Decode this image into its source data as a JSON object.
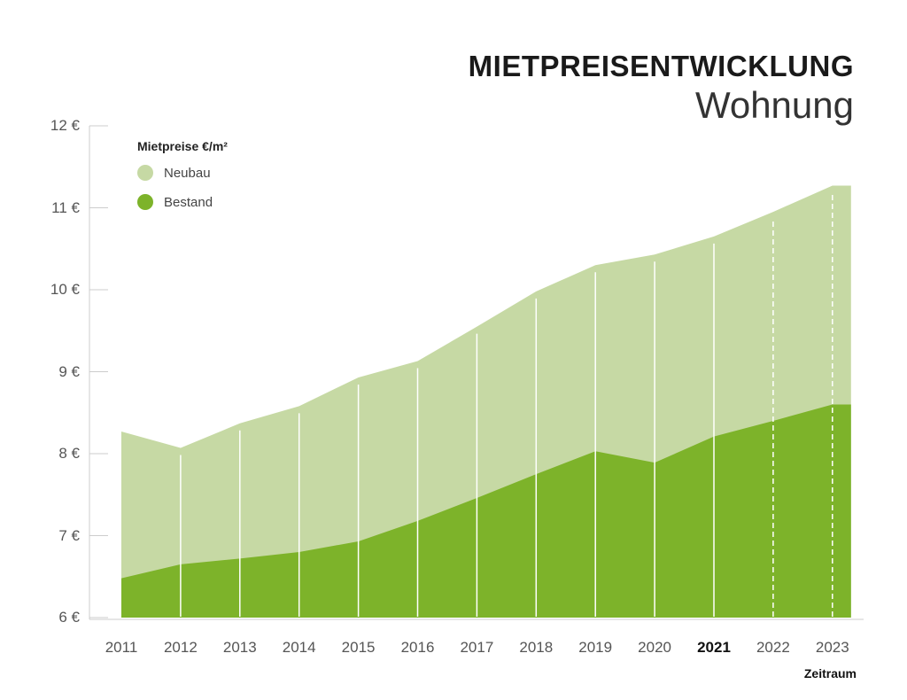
{
  "title": "MIETPREISENTWICKLUNG",
  "subtitle": "Wohnung",
  "legend": {
    "title": "Mietpreise €/m²",
    "items": [
      {
        "label": "Neubau",
        "color": "#c6d9a4"
      },
      {
        "label": "Bestand",
        "color": "#7db32a"
      }
    ]
  },
  "xlabel": "Zeitraum",
  "chart_data": {
    "type": "area",
    "x": [
      "2011",
      "2012",
      "2013",
      "2014",
      "2015",
      "2016",
      "2017",
      "2018",
      "2019",
      "2020",
      "2021",
      "2022",
      "2023"
    ],
    "highlight_x": "2021",
    "projected_from": "2022",
    "series": [
      {
        "name": "Neubau",
        "color": "#c6d9a4",
        "values": [
          8.27,
          8.07,
          8.37,
          8.58,
          8.93,
          9.13,
          9.55,
          9.98,
          10.3,
          10.43,
          10.65,
          10.95,
          11.27
        ]
      },
      {
        "name": "Bestand",
        "color": "#7db32a",
        "values": [
          6.48,
          6.65,
          6.72,
          6.8,
          6.93,
          7.18,
          7.46,
          7.75,
          8.03,
          7.89,
          8.21,
          8.4,
          8.6
        ]
      }
    ],
    "ylim": [
      6,
      12
    ],
    "yticks": [
      6,
      7,
      8,
      9,
      10,
      11,
      12
    ],
    "ytick_labels": [
      "6 €",
      "7 €",
      "8 €",
      "9 €",
      "10 €",
      "11 €",
      "12 €"
    ]
  }
}
